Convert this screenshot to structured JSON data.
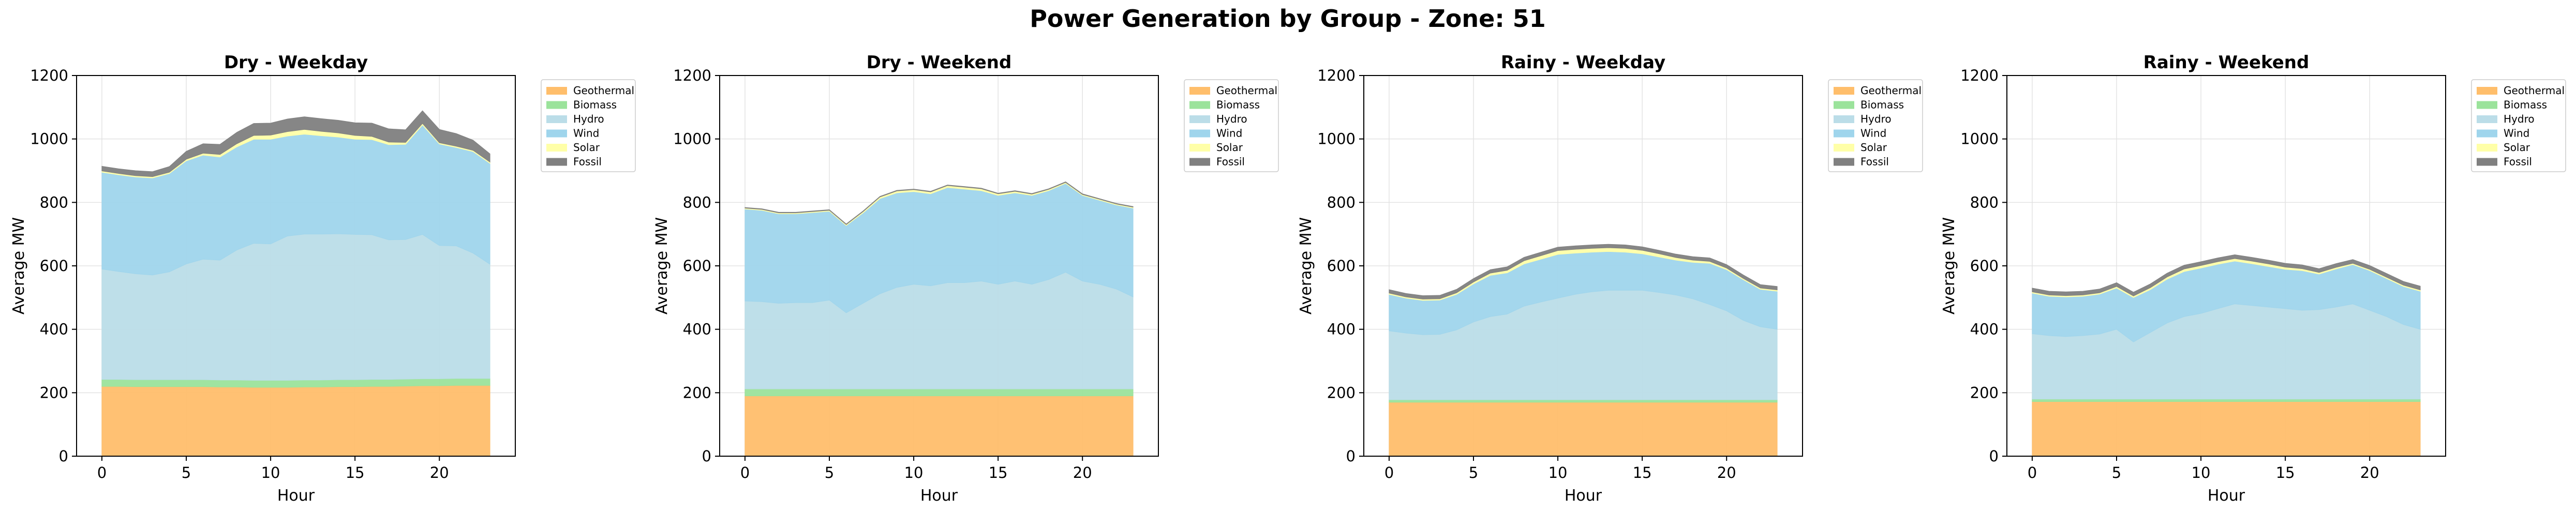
{
  "figure_title": "Power Generation by Group - Zone: 51",
  "colors": {
    "Geothermal": "#FFBE6B",
    "Biomass": "#9BE39B",
    "Hydro": "#BBDDE8",
    "Wind": "#9FD5EC",
    "Solar": "#FFFFA8",
    "Fossil": "#808080"
  },
  "chart_data": [
    {
      "type": "area",
      "title": "Dry - Weekday",
      "xlabel": "Hour",
      "ylabel": "Average MW",
      "xlim": [
        -1.5,
        24.5
      ],
      "ylim": [
        0,
        1200
      ],
      "xticks": [
        0,
        5,
        10,
        15,
        20
      ],
      "yticks": [
        0,
        200,
        400,
        600,
        800,
        1000,
        1200
      ],
      "grid": true,
      "legend_position": "outside-right",
      "x": [
        0,
        1,
        2,
        3,
        4,
        5,
        6,
        7,
        8,
        9,
        10,
        11,
        12,
        13,
        14,
        15,
        16,
        17,
        18,
        19,
        20,
        21,
        22,
        23
      ],
      "series": [
        {
          "name": "Geothermal",
          "values": [
            220,
            220,
            219,
            219,
            219,
            219,
            219,
            218,
            218,
            217,
            217,
            217,
            218,
            218,
            219,
            219,
            220,
            220,
            221,
            222,
            222,
            223,
            223,
            223
          ]
        },
        {
          "name": "Biomass",
          "values": [
            22,
            22,
            22,
            22,
            22,
            22,
            22,
            22,
            22,
            22,
            22,
            22,
            22,
            22,
            22,
            22,
            22,
            22,
            22,
            22,
            22,
            22,
            22,
            22
          ]
        },
        {
          "name": "Hydro",
          "values": [
            348,
            340,
            334,
            330,
            340,
            365,
            380,
            378,
            410,
            432,
            430,
            455,
            460,
            460,
            460,
            458,
            456,
            440,
            440,
            455,
            420,
            418,
            395,
            360
          ]
        },
        {
          "name": "Wind",
          "values": [
            305,
            305,
            305,
            306,
            310,
            325,
            328,
            325,
            325,
            328,
            330,
            315,
            315,
            310,
            305,
            300,
            300,
            300,
            300,
            345,
            320,
            310,
            320,
            318
          ]
        },
        {
          "name": "Solar",
          "values": [
            4,
            4,
            4,
            4,
            4,
            5,
            6,
            8,
            10,
            12,
            13,
            14,
            15,
            14,
            13,
            12,
            10,
            8,
            6,
            5,
            4,
            4,
            4,
            4
          ]
        },
        {
          "name": "Fossil",
          "values": [
            15,
            15,
            16,
            16,
            18,
            25,
            30,
            32,
            36,
            38,
            38,
            40,
            40,
            40,
            40,
            40,
            42,
            42,
            40,
            40,
            42,
            40,
            32,
            26
          ]
        }
      ]
    },
    {
      "type": "area",
      "title": "Dry - Weekend",
      "xlabel": "Hour",
      "ylabel": "Average MW",
      "xlim": [
        -1.5,
        24.5
      ],
      "ylim": [
        0,
        1200
      ],
      "xticks": [
        0,
        5,
        10,
        15,
        20
      ],
      "yticks": [
        0,
        200,
        400,
        600,
        800,
        1000,
        1200
      ],
      "grid": true,
      "legend_position": "outside-right",
      "x": [
        0,
        1,
        2,
        3,
        4,
        5,
        6,
        7,
        8,
        9,
        10,
        11,
        12,
        13,
        14,
        15,
        16,
        17,
        18,
        19,
        20,
        21,
        22,
        23
      ],
      "series": [
        {
          "name": "Geothermal",
          "values": [
            190,
            190,
            190,
            190,
            190,
            190,
            190,
            190,
            190,
            190,
            190,
            190,
            190,
            190,
            190,
            190,
            190,
            190,
            190,
            190,
            190,
            190,
            190,
            190
          ]
        },
        {
          "name": "Biomass",
          "values": [
            22,
            22,
            22,
            22,
            22,
            22,
            22,
            22,
            22,
            22,
            22,
            22,
            22,
            22,
            22,
            22,
            22,
            22,
            22,
            22,
            22,
            22,
            22,
            22
          ]
        },
        {
          "name": "Hydro",
          "values": [
            277,
            275,
            270,
            272,
            272,
            280,
            240,
            270,
            300,
            320,
            330,
            325,
            335,
            335,
            340,
            330,
            340,
            330,
            345,
            368,
            340,
            330,
            315,
            290
          ]
        },
        {
          "name": "Wind",
          "values": [
            290,
            288,
            282,
            280,
            284,
            280,
            275,
            285,
            300,
            298,
            292,
            290,
            300,
            295,
            285,
            280,
            278,
            280,
            280,
            280,
            270,
            265,
            265,
            280
          ]
        },
        {
          "name": "Solar",
          "values": [
            3,
            3,
            3,
            3,
            3,
            3,
            3,
            4,
            5,
            6,
            6,
            6,
            6,
            6,
            6,
            5,
            5,
            4,
            4,
            3,
            3,
            3,
            3,
            3
          ]
        },
        {
          "name": "Fossil",
          "values": [
            2,
            2,
            2,
            2,
            2,
            2,
            2,
            2,
            2,
            2,
            2,
            2,
            2,
            2,
            2,
            2,
            2,
            2,
            2,
            2,
            2,
            2,
            2,
            2
          ]
        }
      ]
    },
    {
      "type": "area",
      "title": "Rainy - Weekday",
      "xlabel": "Hour",
      "ylabel": "Average MW",
      "xlim": [
        -1.5,
        24.5
      ],
      "ylim": [
        0,
        1200
      ],
      "xticks": [
        0,
        5,
        10,
        15,
        20
      ],
      "yticks": [
        0,
        200,
        400,
        600,
        800,
        1000,
        1200
      ],
      "grid": true,
      "legend_position": "outside-right",
      "x": [
        0,
        1,
        2,
        3,
        4,
        5,
        6,
        7,
        8,
        9,
        10,
        11,
        12,
        13,
        14,
        15,
        16,
        17,
        18,
        19,
        20,
        21,
        22,
        23
      ],
      "series": [
        {
          "name": "Geothermal",
          "values": [
            170,
            170,
            170,
            170,
            170,
            170,
            170,
            170,
            170,
            170,
            170,
            170,
            170,
            170,
            170,
            170,
            170,
            170,
            170,
            170,
            170,
            170,
            170,
            170
          ]
        },
        {
          "name": "Biomass",
          "values": [
            8,
            8,
            8,
            8,
            8,
            8,
            8,
            8,
            8,
            8,
            8,
            8,
            8,
            8,
            8,
            8,
            8,
            8,
            8,
            8,
            8,
            8,
            8,
            8
          ]
        },
        {
          "name": "Hydro",
          "values": [
            217,
            210,
            205,
            206,
            220,
            245,
            262,
            270,
            295,
            308,
            320,
            332,
            340,
            345,
            345,
            345,
            338,
            330,
            318,
            300,
            280,
            250,
            230,
            222
          ]
        },
        {
          "name": "Wind",
          "values": [
            115,
            110,
            108,
            108,
            112,
            120,
            130,
            130,
            133,
            135,
            138,
            130,
            125,
            122,
            120,
            115,
            112,
            110,
            115,
            130,
            130,
            128,
            118,
            120
          ]
        },
        {
          "name": "Solar",
          "values": [
            4,
            4,
            4,
            4,
            5,
            6,
            7,
            8,
            10,
            11,
            12,
            12,
            12,
            12,
            12,
            11,
            10,
            8,
            7,
            6,
            5,
            4,
            4,
            4
          ]
        },
        {
          "name": "Fossil",
          "values": [
            11,
            11,
            11,
            11,
            11,
            11,
            11,
            11,
            11,
            11,
            11,
            11,
            11,
            11,
            11,
            11,
            11,
            11,
            11,
            11,
            11,
            11,
            11,
            11
          ]
        }
      ]
    },
    {
      "type": "area",
      "title": "Rainy - Weekend",
      "xlabel": "Hour",
      "ylabel": "Average MW",
      "xlim": [
        -1.5,
        24.5
      ],
      "ylim": [
        0,
        1200
      ],
      "xticks": [
        0,
        5,
        10,
        15,
        20
      ],
      "yticks": [
        0,
        200,
        400,
        600,
        800,
        1000,
        1200
      ],
      "grid": true,
      "legend_position": "outside-right",
      "x": [
        0,
        1,
        2,
        3,
        4,
        5,
        6,
        7,
        8,
        9,
        10,
        11,
        12,
        13,
        14,
        15,
        16,
        17,
        18,
        19,
        20,
        21,
        22,
        23
      ],
      "series": [
        {
          "name": "Geothermal",
          "values": [
            172,
            172,
            172,
            172,
            172,
            172,
            172,
            172,
            172,
            172,
            172,
            172,
            172,
            172,
            172,
            172,
            172,
            172,
            172,
            172,
            172,
            172,
            172,
            172
          ]
        },
        {
          "name": "Biomass",
          "values": [
            8,
            8,
            8,
            8,
            8,
            8,
            8,
            8,
            8,
            8,
            8,
            8,
            8,
            8,
            8,
            8,
            8,
            8,
            8,
            8,
            8,
            8,
            8,
            8
          ]
        },
        {
          "name": "Hydro",
          "values": [
            206,
            200,
            197,
            200,
            205,
            220,
            180,
            210,
            240,
            260,
            270,
            285,
            300,
            295,
            290,
            285,
            280,
            282,
            290,
            300,
            280,
            260,
            235,
            220
          ]
        },
        {
          "name": "Wind",
          "values": [
            128,
            124,
            125,
            124,
            126,
            130,
            140,
            135,
            138,
            142,
            143,
            140,
            135,
            132,
            128,
            124,
            125,
            112,
            120,
            124,
            125,
            120,
            120,
            120
          ]
        },
        {
          "name": "Solar",
          "values": [
            4,
            4,
            4,
            4,
            4,
            5,
            5,
            6,
            7,
            8,
            8,
            8,
            8,
            8,
            8,
            7,
            6,
            5,
            5,
            4,
            4,
            4,
            4,
            4
          ]
        },
        {
          "name": "Fossil",
          "values": [
            12,
            12,
            12,
            12,
            12,
            12,
            12,
            12,
            12,
            12,
            12,
            12,
            12,
            12,
            12,
            12,
            12,
            12,
            12,
            12,
            12,
            12,
            12,
            12
          ]
        }
      ]
    }
  ]
}
